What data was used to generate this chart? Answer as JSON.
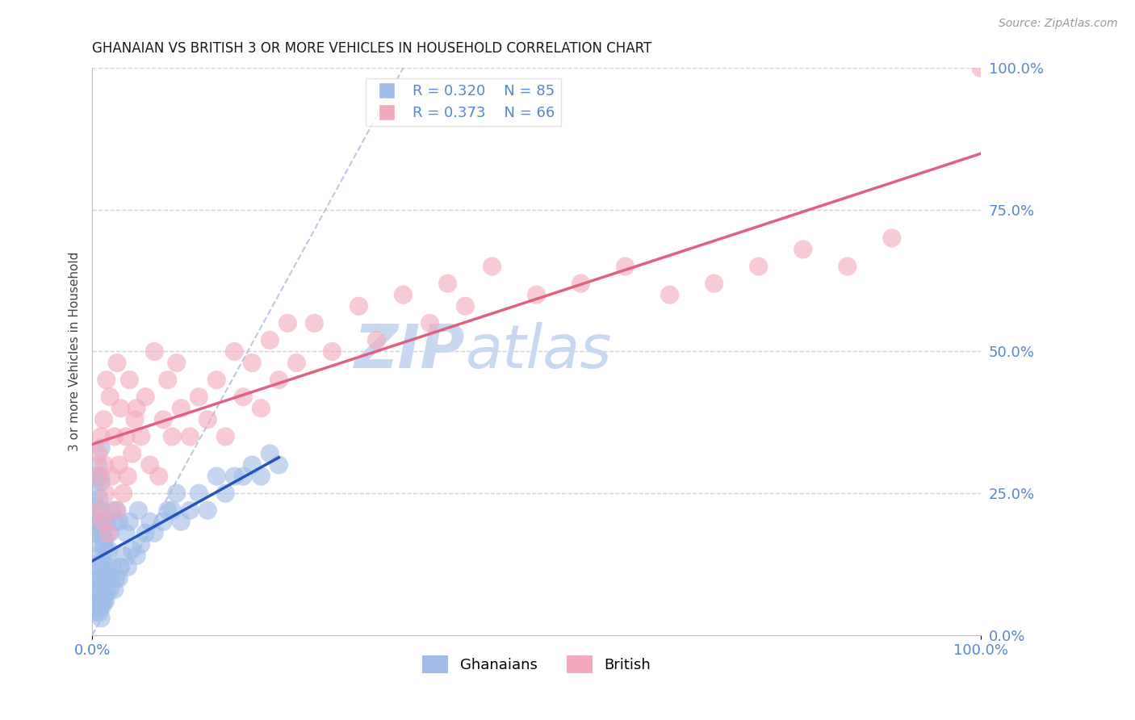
{
  "title": "GHANAIAN VS BRITISH 3 OR MORE VEHICLES IN HOUSEHOLD CORRELATION CHART",
  "source_text": "Source: ZipAtlas.com",
  "ylabel": "3 or more Vehicles in Household",
  "xlim": [
    0.0,
    1.0
  ],
  "ylim": [
    0.0,
    1.0
  ],
  "xtick_labels": [
    "0.0%",
    "100.0%"
  ],
  "ytick_labels_right": [
    "0.0%",
    "25.0%",
    "50.0%",
    "75.0%",
    "100.0%"
  ],
  "ghanaian_R": 0.32,
  "ghanaian_N": 85,
  "british_R": 0.373,
  "british_N": 66,
  "ghanaian_color": "#a0bce8",
  "british_color": "#f4a8bc",
  "ghanaian_line_color": "#2255bb",
  "british_line_color": "#e06080",
  "watermark_color": "#c8d8f0",
  "legend_label_ghanaians": "Ghanaians",
  "legend_label_british": "British",
  "ghanaian_x": [
    0.002,
    0.003,
    0.003,
    0.004,
    0.004,
    0.005,
    0.005,
    0.005,
    0.005,
    0.006,
    0.006,
    0.006,
    0.007,
    0.007,
    0.007,
    0.007,
    0.008,
    0.008,
    0.008,
    0.008,
    0.009,
    0.009,
    0.009,
    0.009,
    0.01,
    0.01,
    0.01,
    0.01,
    0.01,
    0.01,
    0.011,
    0.011,
    0.011,
    0.012,
    0.012,
    0.013,
    0.013,
    0.014,
    0.014,
    0.015,
    0.015,
    0.016,
    0.016,
    0.017,
    0.018,
    0.019,
    0.02,
    0.02,
    0.022,
    0.022,
    0.023,
    0.025,
    0.025,
    0.027,
    0.028,
    0.03,
    0.03,
    0.032,
    0.035,
    0.038,
    0.04,
    0.042,
    0.045,
    0.05,
    0.052,
    0.055,
    0.06,
    0.065,
    0.07,
    0.08,
    0.085,
    0.09,
    0.095,
    0.1,
    0.11,
    0.12,
    0.13,
    0.14,
    0.15,
    0.16,
    0.17,
    0.18,
    0.19,
    0.2,
    0.21
  ],
  "ghanaian_y": [
    0.05,
    0.1,
    0.22,
    0.08,
    0.18,
    0.04,
    0.12,
    0.2,
    0.28,
    0.06,
    0.14,
    0.25,
    0.05,
    0.1,
    0.18,
    0.3,
    0.04,
    0.08,
    0.16,
    0.24,
    0.05,
    0.1,
    0.19,
    0.28,
    0.03,
    0.08,
    0.13,
    0.2,
    0.27,
    0.33,
    0.05,
    0.12,
    0.22,
    0.07,
    0.18,
    0.06,
    0.16,
    0.07,
    0.17,
    0.06,
    0.15,
    0.08,
    0.2,
    0.1,
    0.12,
    0.15,
    0.08,
    0.18,
    0.1,
    0.22,
    0.12,
    0.08,
    0.2,
    0.1,
    0.22,
    0.1,
    0.2,
    0.12,
    0.14,
    0.18,
    0.12,
    0.2,
    0.15,
    0.14,
    0.22,
    0.16,
    0.18,
    0.2,
    0.18,
    0.2,
    0.22,
    0.22,
    0.25,
    0.2,
    0.22,
    0.25,
    0.22,
    0.28,
    0.25,
    0.28,
    0.28,
    0.3,
    0.28,
    0.32,
    0.3
  ],
  "british_x": [
    0.005,
    0.007,
    0.008,
    0.01,
    0.012,
    0.013,
    0.014,
    0.015,
    0.016,
    0.018,
    0.02,
    0.022,
    0.025,
    0.027,
    0.028,
    0.03,
    0.032,
    0.035,
    0.038,
    0.04,
    0.042,
    0.045,
    0.048,
    0.05,
    0.055,
    0.06,
    0.065,
    0.07,
    0.075,
    0.08,
    0.085,
    0.09,
    0.095,
    0.1,
    0.11,
    0.12,
    0.13,
    0.14,
    0.15,
    0.16,
    0.17,
    0.18,
    0.19,
    0.2,
    0.21,
    0.22,
    0.23,
    0.25,
    0.27,
    0.3,
    0.32,
    0.35,
    0.38,
    0.4,
    0.42,
    0.45,
    0.5,
    0.55,
    0.6,
    0.65,
    0.7,
    0.75,
    0.8,
    0.85,
    0.9,
    1.0
  ],
  "british_y": [
    0.28,
    0.32,
    0.22,
    0.35,
    0.2,
    0.38,
    0.3,
    0.25,
    0.45,
    0.18,
    0.42,
    0.28,
    0.35,
    0.22,
    0.48,
    0.3,
    0.4,
    0.25,
    0.35,
    0.28,
    0.45,
    0.32,
    0.38,
    0.4,
    0.35,
    0.42,
    0.3,
    0.5,
    0.28,
    0.38,
    0.45,
    0.35,
    0.48,
    0.4,
    0.35,
    0.42,
    0.38,
    0.45,
    0.35,
    0.5,
    0.42,
    0.48,
    0.4,
    0.52,
    0.45,
    0.55,
    0.48,
    0.55,
    0.5,
    0.58,
    0.52,
    0.6,
    0.55,
    0.62,
    0.58,
    0.65,
    0.6,
    0.62,
    0.65,
    0.6,
    0.62,
    0.65,
    0.68,
    0.65,
    0.7,
    1.0
  ]
}
